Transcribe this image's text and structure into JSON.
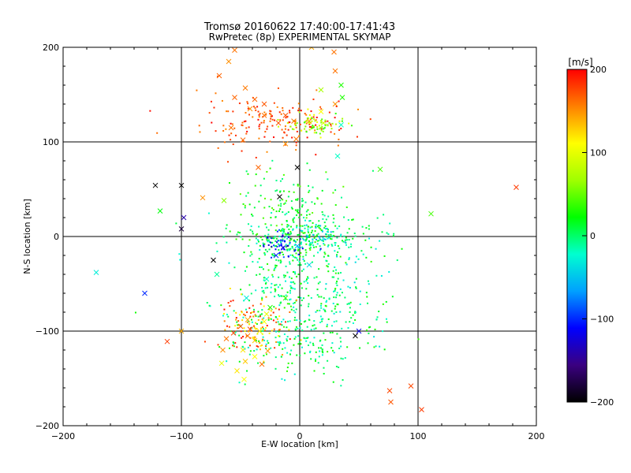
{
  "chart_data": {
    "type": "scatter",
    "title": "Tromsø 20160622 17:40:00-17:41:43",
    "subtitle": "RwPretec (8p) EXPERIMENTAL SKYMAP",
    "xlabel": "E-W location [km]",
    "ylabel": "N-S location [km]",
    "xlim": [
      -200,
      200
    ],
    "ylim": [
      -200,
      200
    ],
    "xticks": [
      -200,
      -100,
      0,
      100,
      200
    ],
    "yticks": [
      -200,
      -100,
      0,
      100,
      200
    ],
    "xtick_labels": [
      "−200",
      "−100",
      "0",
      "100",
      "200"
    ],
    "ytick_labels": [
      "−200",
      "−100",
      "0",
      "100",
      "200"
    ],
    "grid_lines_x": [
      -100,
      0,
      100
    ],
    "grid_lines_y": [
      -100,
      0,
      100
    ],
    "colorbar": {
      "label": "[m/s]",
      "range": [
        -200,
        200
      ],
      "ticks": [
        200,
        100,
        0,
        -100,
        -200
      ],
      "tick_labels": [
        "200",
        "100",
        "0",
        "−100",
        "−200"
      ],
      "colormap": [
        "#000000",
        "#3a0080",
        "#0000ff",
        "#00a0ff",
        "#00ffd0",
        "#00ff00",
        "#a0ff00",
        "#ffff00",
        "#ff8000",
        "#ff0000"
      ]
    },
    "series": [
      {
        "marker": "x",
        "points": [
          [
            -55,
            197,
            160
          ],
          [
            -60,
            185,
            150
          ],
          [
            -68,
            170,
            165
          ],
          [
            -46,
            157,
            158
          ],
          [
            -55,
            147,
            165
          ],
          [
            -38,
            145,
            165
          ],
          [
            -30,
            140,
            170
          ],
          [
            -42,
            135,
            150
          ],
          [
            -30,
            128,
            160
          ],
          [
            -18,
            120,
            170
          ],
          [
            -5,
            122,
            160
          ],
          [
            8,
            122,
            145
          ],
          [
            20,
            120,
            90
          ],
          [
            35,
            118,
            -20
          ],
          [
            30,
            140,
            150
          ],
          [
            35,
            160,
            30
          ],
          [
            -48,
            102,
            165
          ],
          [
            -58,
            115,
            160
          ],
          [
            -12,
            98,
            150
          ],
          [
            18,
            132,
            110
          ],
          [
            -100,
            54,
            -200
          ],
          [
            -122,
            54,
            -200
          ],
          [
            -118,
            27,
            20
          ],
          [
            -64,
            38,
            60
          ],
          [
            -98,
            20,
            -140
          ],
          [
            -100,
            8,
            -180
          ],
          [
            -82,
            41,
            150
          ],
          [
            -35,
            73,
            165
          ],
          [
            -17,
            42,
            -200
          ],
          [
            -42,
            -98,
            175
          ],
          [
            -50,
            -95,
            170
          ],
          [
            -56,
            -102,
            175
          ],
          [
            -44,
            -105,
            160
          ],
          [
            -38,
            -110,
            130
          ],
          [
            -34,
            -100,
            120
          ],
          [
            -30,
            -90,
            110
          ],
          [
            -28,
            -82,
            100
          ],
          [
            -44,
            -88,
            140
          ],
          [
            -62,
            -108,
            160
          ],
          [
            -65,
            -120,
            150
          ],
          [
            -48,
            -120,
            120
          ],
          [
            -38,
            -127,
            110
          ],
          [
            -46,
            -132,
            130
          ],
          [
            -27,
            -121,
            150
          ],
          [
            -32,
            -135,
            160
          ],
          [
            -47,
            -151,
            110
          ],
          [
            -66,
            -134,
            100
          ],
          [
            -53,
            -142,
            120
          ],
          [
            -28,
            -45,
            -20
          ],
          [
            -20,
            -20,
            -100
          ],
          [
            -14,
            -12,
            -120
          ],
          [
            -2,
            -10,
            -60
          ],
          [
            8,
            -30,
            -40
          ],
          [
            -25,
            -75,
            30
          ],
          [
            -12,
            -65,
            40
          ],
          [
            76,
            -163,
            175
          ],
          [
            77,
            -175,
            170
          ],
          [
            94,
            -158,
            175
          ],
          [
            103,
            -183,
            180
          ],
          [
            183,
            52,
            180
          ],
          [
            -172,
            -38,
            -30
          ],
          [
            -131,
            -60,
            -100
          ],
          [
            111,
            24,
            40
          ],
          [
            68,
            71,
            40
          ],
          [
            32,
            85,
            -20
          ],
          [
            -73,
            -25,
            -200
          ],
          [
            47,
            -105,
            -200
          ],
          [
            50,
            -100,
            -120
          ],
          [
            -2,
            73,
            -200
          ],
          [
            36,
            147,
            30
          ],
          [
            18,
            155,
            70
          ],
          [
            30,
            175,
            160
          ],
          [
            29,
            195,
            160
          ],
          [
            10,
            200,
            140
          ],
          [
            -3,
            103,
            160
          ],
          [
            -12,
            128,
            170
          ],
          [
            -45,
            -65,
            -30
          ],
          [
            -70,
            -40,
            -10
          ],
          [
            -100,
            -100,
            140
          ],
          [
            -112,
            -111,
            180
          ]
        ]
      },
      {
        "marker": "dot",
        "clusters": [
          {
            "cx": 0,
            "cy": 0,
            "sx": 30,
            "sy": 12,
            "n": 260,
            "vmin": -30,
            "vmax": 40
          },
          {
            "cx": -15,
            "cy": -10,
            "sx": 10,
            "sy": 8,
            "n": 50,
            "vmin": -140,
            "vmax": -80
          },
          {
            "cx": 10,
            "cy": 0,
            "sx": 12,
            "sy": 8,
            "n": 40,
            "vmin": -60,
            "vmax": -20
          },
          {
            "cx": -10,
            "cy": -55,
            "sx": 32,
            "sy": 30,
            "n": 260,
            "vmin": -30,
            "vmax": 40
          },
          {
            "cx": -10,
            "cy": 30,
            "sx": 22,
            "sy": 22,
            "n": 140,
            "vmin": -10,
            "vmax": 50
          },
          {
            "cx": -20,
            "cy": 120,
            "sx": 32,
            "sy": 14,
            "n": 170,
            "vmin": 150,
            "vmax": 200
          },
          {
            "cx": 15,
            "cy": 118,
            "sx": 14,
            "sy": 6,
            "n": 70,
            "vmin": 30,
            "vmax": 110
          },
          {
            "cx": 30,
            "cy": -60,
            "sx": 24,
            "sy": 38,
            "n": 120,
            "vmin": -40,
            "vmax": 20
          },
          {
            "cx": -38,
            "cy": -95,
            "sx": 14,
            "sy": 14,
            "n": 120,
            "vmin": 100,
            "vmax": 200
          },
          {
            "cx": 0,
            "cy": -110,
            "sx": 32,
            "sy": 22,
            "n": 150,
            "vmin": -30,
            "vmax": 40
          }
        ]
      }
    ]
  }
}
